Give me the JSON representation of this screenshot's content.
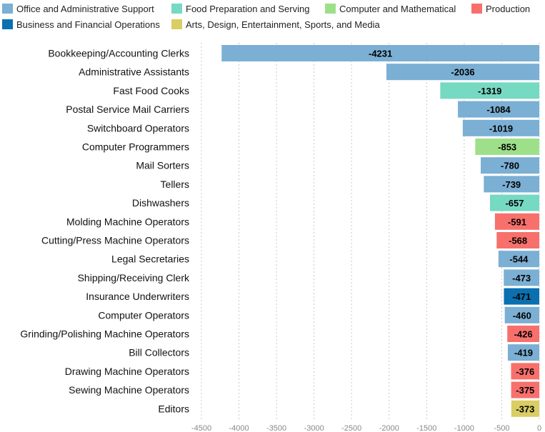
{
  "chart_data": {
    "type": "bar",
    "orientation": "horizontal",
    "title": "",
    "xlabel": "",
    "ylabel": "",
    "xlim": [
      -4500,
      0
    ],
    "x_ticks": [
      -4500,
      -4000,
      -3500,
      -3000,
      -2500,
      -2000,
      -1500,
      -1000,
      -500,
      0
    ],
    "grid": "vertical-dotted",
    "legend_position": "top",
    "legend": [
      {
        "key": "office",
        "name": "Office and Administrative Support",
        "color": "#7bafd4"
      },
      {
        "key": "food",
        "name": "Food Preparation and Serving",
        "color": "#76d9c2"
      },
      {
        "key": "computer",
        "name": "Computer and Mathematical",
        "color": "#9ee08a"
      },
      {
        "key": "production",
        "name": "Production",
        "color": "#f7706c"
      },
      {
        "key": "business",
        "name": "Business and Financial Operations",
        "color": "#0a70b0"
      },
      {
        "key": "arts",
        "name": "Arts, Design, Entertainment, Sports, and Media",
        "color": "#d9cd63"
      }
    ],
    "bars": [
      {
        "category": "Bookkeeping/Accounting Clerks",
        "value": -4231,
        "group": "office"
      },
      {
        "category": "Administrative Assistants",
        "value": -2036,
        "group": "office"
      },
      {
        "category": "Fast Food Cooks",
        "value": -1319,
        "group": "food"
      },
      {
        "category": "Postal Service Mail Carriers",
        "value": -1084,
        "group": "office"
      },
      {
        "category": "Switchboard Operators",
        "value": -1019,
        "group": "office"
      },
      {
        "category": "Computer Programmers",
        "value": -853,
        "group": "computer"
      },
      {
        "category": "Mail Sorters",
        "value": -780,
        "group": "office"
      },
      {
        "category": "Tellers",
        "value": -739,
        "group": "office"
      },
      {
        "category": "Dishwashers",
        "value": -657,
        "group": "food"
      },
      {
        "category": "Molding Machine Operators",
        "value": -591,
        "group": "production"
      },
      {
        "category": "Cutting/Press Machine Operators",
        "value": -568,
        "group": "production"
      },
      {
        "category": "Legal Secretaries",
        "value": -544,
        "group": "office"
      },
      {
        "category": "Shipping/Receiving Clerk",
        "value": -473,
        "group": "office"
      },
      {
        "category": "Insurance Underwriters",
        "value": -471,
        "group": "business"
      },
      {
        "category": "Computer Operators",
        "value": -460,
        "group": "office"
      },
      {
        "category": "Grinding/Polishing Machine Operators",
        "value": -426,
        "group": "production"
      },
      {
        "category": "Bill Collectors",
        "value": -419,
        "group": "office"
      },
      {
        "category": "Drawing Machine Operators",
        "value": -376,
        "group": "production"
      },
      {
        "category": "Sewing Machine Operators",
        "value": -375,
        "group": "production"
      },
      {
        "category": "Editors",
        "value": -373,
        "group": "arts"
      }
    ]
  }
}
